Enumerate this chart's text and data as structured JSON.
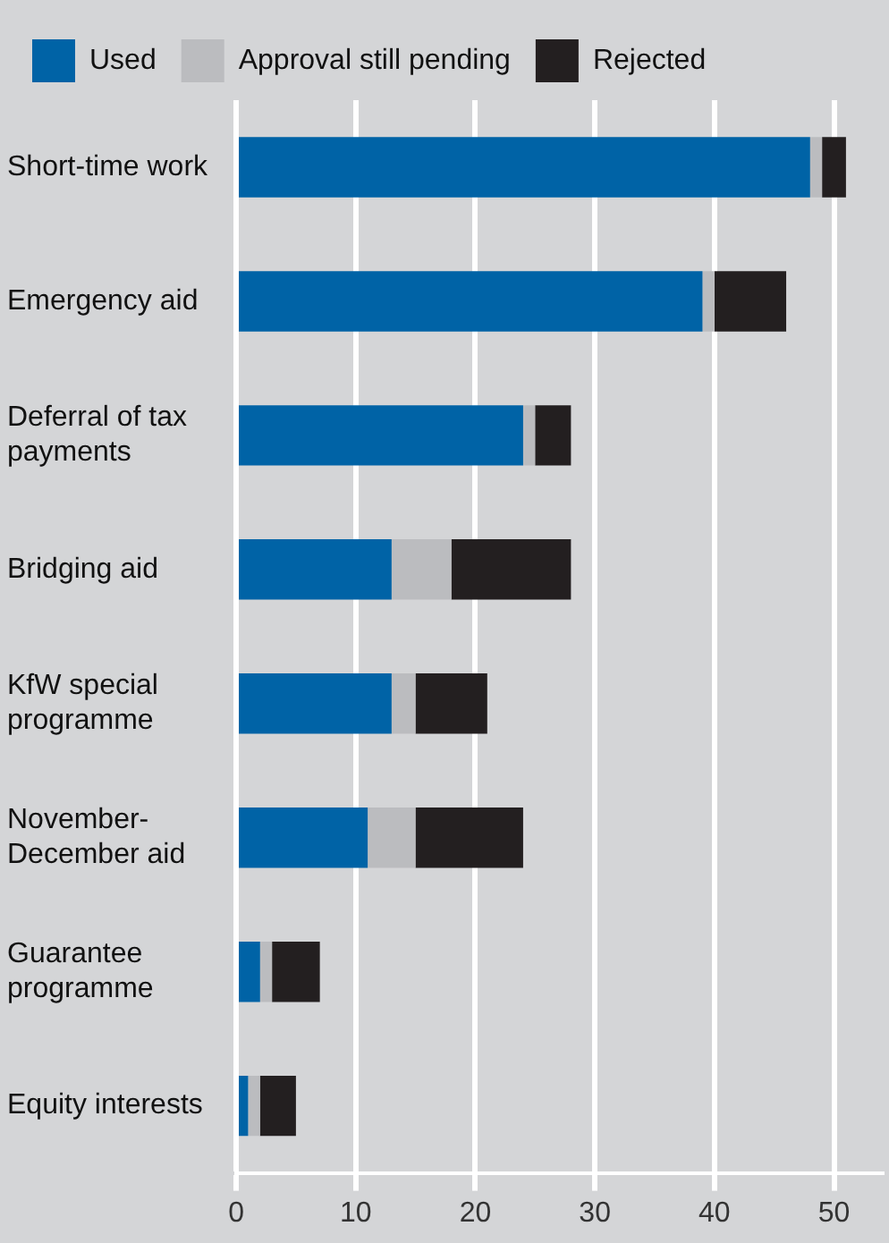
{
  "chart_data": {
    "type": "bar",
    "orientation": "horizontal",
    "stacked": true,
    "categories": [
      "Short-time work",
      "Emergency aid",
      "Deferral of tax payments",
      "Bridging aid",
      "KfW special programme",
      "November-December aid",
      "Guarantee programme",
      "Equity interests"
    ],
    "series": [
      {
        "name": "Used",
        "color": "#0063a6",
        "values": [
          48,
          39,
          24,
          13,
          13,
          11,
          2,
          1
        ]
      },
      {
        "name": "Approval still pending",
        "color": "#bbbcbf",
        "values": [
          1,
          1,
          1,
          5,
          2,
          4,
          1,
          1
        ]
      },
      {
        "name": "Rejected",
        "color": "#231f20",
        "values": [
          2,
          6,
          3,
          10,
          6,
          9,
          4,
          3
        ]
      }
    ],
    "xlim": [
      0,
      54
    ],
    "xticks": [
      0,
      10,
      20,
      30,
      40,
      50
    ],
    "grid": "x",
    "legend": "top left"
  }
}
